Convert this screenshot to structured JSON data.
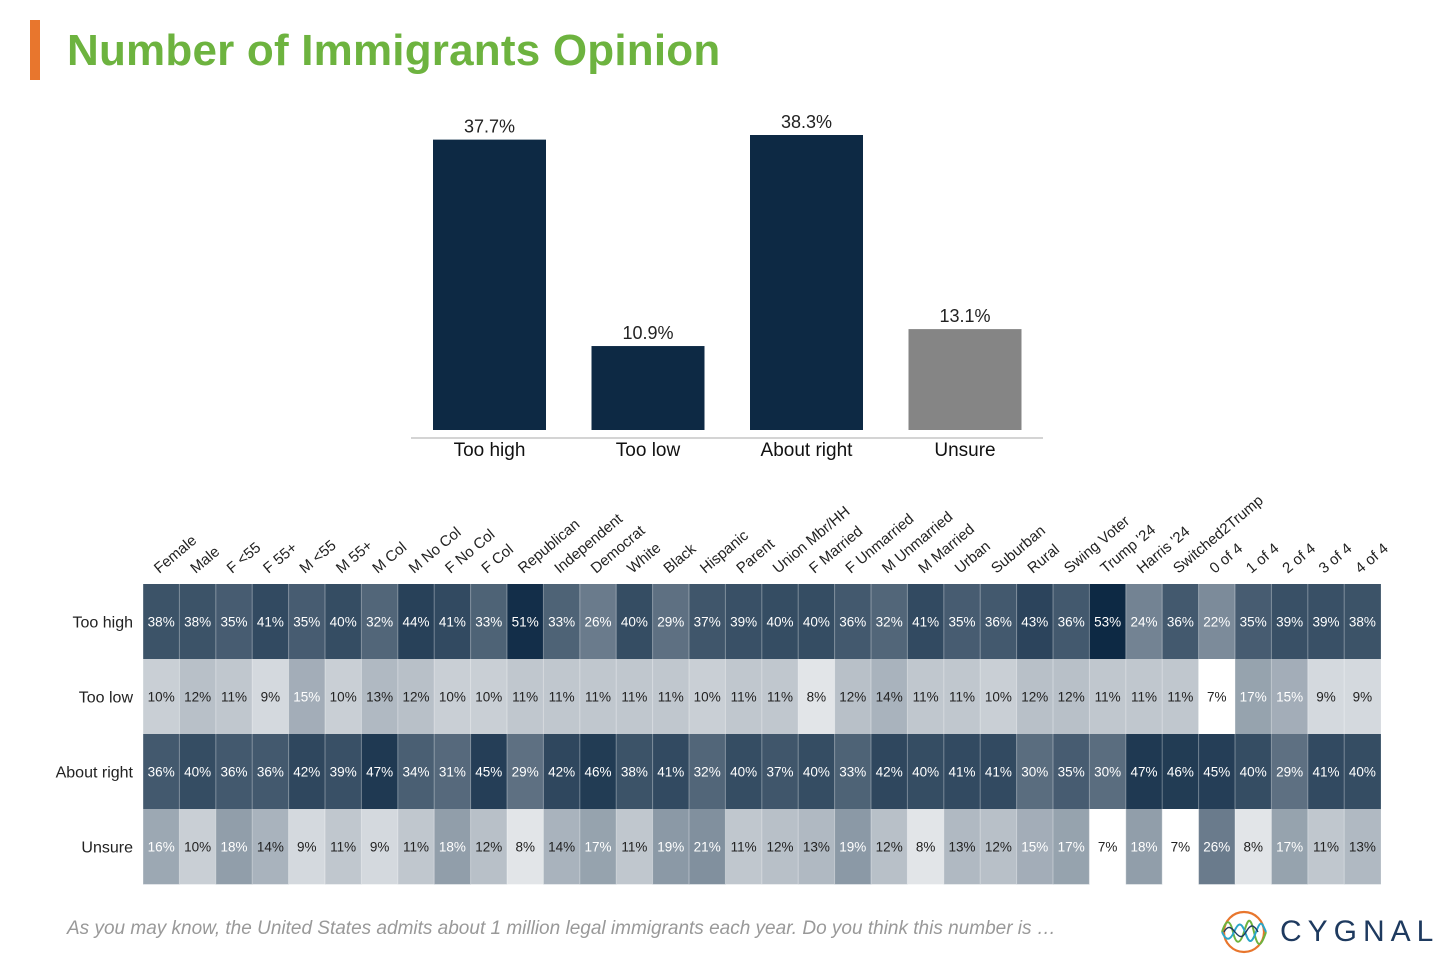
{
  "title": "Number of Immigrants Opinion",
  "footer": {
    "question": "As you may know, the United States admits about 1 million legal immigrants each year. Do you think this number is …",
    "logo_text": "CYGNAL"
  },
  "colors": {
    "accent": "#E8762D",
    "title": "#6DB33F",
    "bar_primary": "#0D2944",
    "bar_unsure": "#858585",
    "heatmap_dark": "#0D2944",
    "heatmap_light": "#FFFFFF"
  },
  "chart_data": [
    {
      "type": "bar",
      "categories": [
        "Too high",
        "Too low",
        "About right",
        "Unsure"
      ],
      "values": [
        37.7,
        10.9,
        38.3,
        13.1
      ],
      "labels": [
        "37.7%",
        "10.9%",
        "38.3%",
        "13.1%"
      ],
      "ylim": [
        0,
        40
      ],
      "grid": false
    },
    {
      "type": "heatmap",
      "columns": [
        "Female",
        "Male",
        "F <55",
        "F 55+",
        "M <55",
        "M 55+",
        "M Col",
        "M No Col",
        "F No Col",
        "F Col",
        "Republican",
        "Independent",
        "Democrat",
        "White",
        "Black",
        "Hispanic",
        "Parent",
        "Union Mbr/HH",
        "F Married",
        "F Unmarried",
        "M Unmarried",
        "M Married",
        "Urban",
        "Suburban",
        "Rural",
        "Swing Voter",
        "Trump '24",
        "Harris '24",
        "Switched2Trump",
        "0 of 4",
        "1 of 4",
        "2 of 4",
        "3 of 4",
        "4 of 4"
      ],
      "rows": [
        {
          "label": "Too high",
          "values": [
            38,
            38,
            35,
            41,
            35,
            40,
            32,
            44,
            41,
            33,
            51,
            33,
            26,
            40,
            29,
            37,
            39,
            40,
            40,
            36,
            32,
            41,
            35,
            36,
            43,
            36,
            53,
            24,
            36,
            22,
            35,
            39,
            39,
            38
          ]
        },
        {
          "label": "Too low",
          "values": [
            10,
            12,
            11,
            9,
            15,
            10,
            13,
            12,
            10,
            10,
            11,
            11,
            11,
            11,
            11,
            10,
            11,
            11,
            8,
            12,
            14,
            11,
            11,
            10,
            12,
            12,
            11,
            11,
            11,
            7,
            17,
            15,
            9,
            9
          ]
        },
        {
          "label": "About right",
          "values": [
            36,
            40,
            36,
            36,
            42,
            39,
            47,
            34,
            31,
            45,
            29,
            42,
            46,
            38,
            41,
            32,
            40,
            37,
            40,
            33,
            42,
            40,
            41,
            41,
            30,
            35,
            30,
            47,
            46,
            45,
            40,
            29,
            41,
            40
          ]
        },
        {
          "label": "Unsure",
          "values": [
            16,
            10,
            18,
            14,
            9,
            11,
            9,
            11,
            18,
            12,
            8,
            14,
            17,
            11,
            19,
            21,
            11,
            12,
            13,
            19,
            12,
            8,
            13,
            12,
            15,
            17,
            7,
            18,
            7,
            26,
            8,
            17,
            11,
            13
          ]
        }
      ],
      "value_suffix": "%"
    }
  ]
}
